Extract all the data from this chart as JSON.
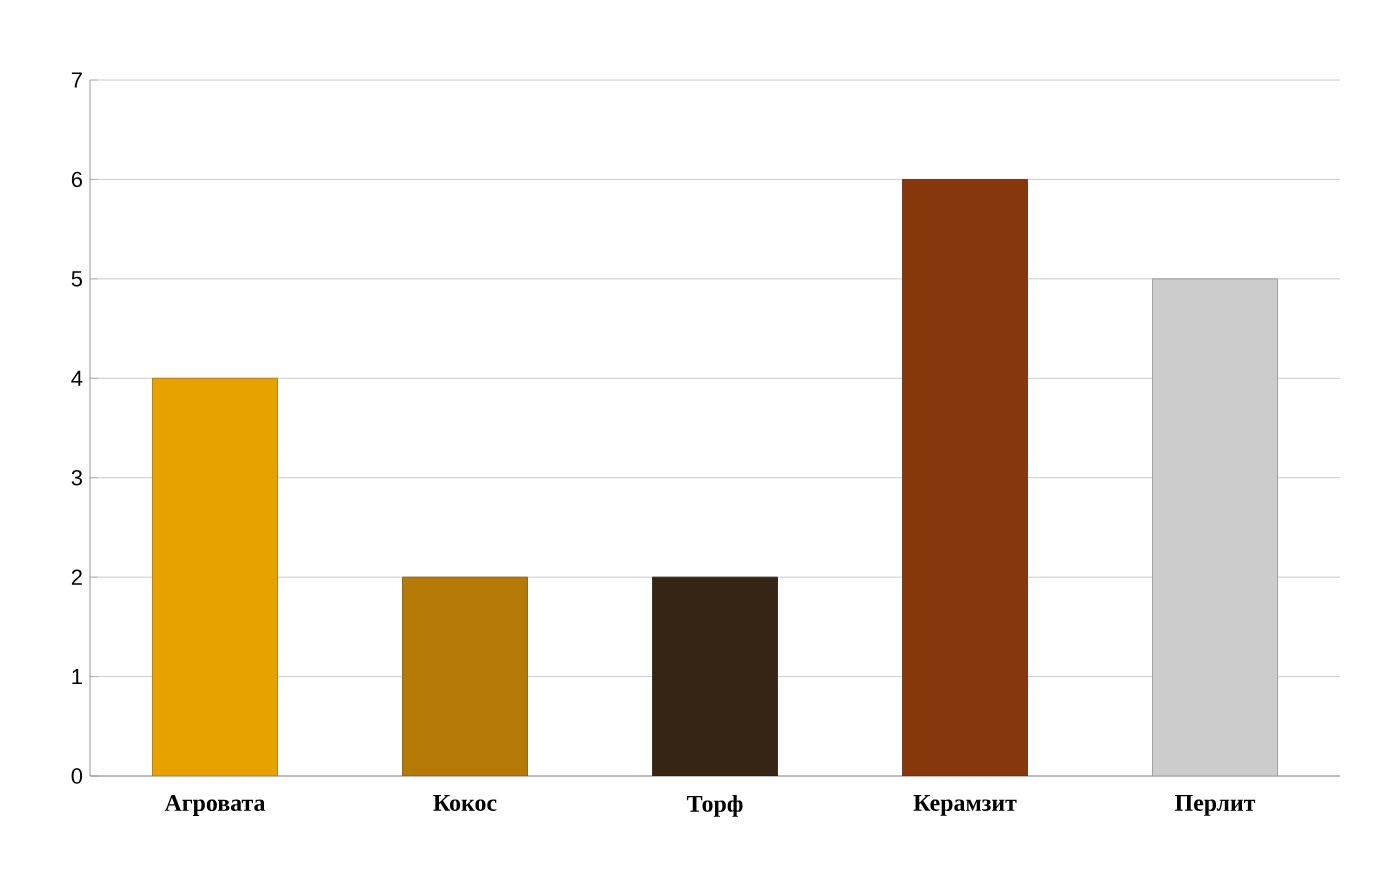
{
  "chart_data": {
    "type": "bar",
    "categories": [
      "Агровата",
      "Кокос",
      "Торф",
      "Керамзит",
      "Перлит"
    ],
    "values": [
      4,
      2,
      2,
      6,
      5
    ],
    "colors": [
      "#e8a200",
      "#b57a06",
      "#352514",
      "#86380c",
      "#cccccc"
    ],
    "ylim": [
      0,
      7
    ],
    "yticks": [
      0,
      1,
      2,
      3,
      4,
      5,
      6,
      7
    ],
    "grid": "y"
  }
}
